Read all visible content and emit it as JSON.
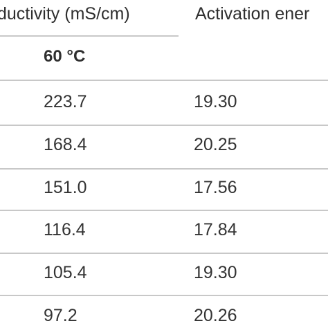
{
  "table": {
    "header_conductivity": "ductivity (mS/cm)",
    "header_activation": "Activation ener",
    "subheader_temperature": "60 °C",
    "rows": [
      {
        "conductivity_60c": "223.7",
        "activation_energy": "19.30"
      },
      {
        "conductivity_60c": "168.4",
        "activation_energy": "20.25"
      },
      {
        "conductivity_60c": "151.0",
        "activation_energy": "17.56"
      },
      {
        "conductivity_60c": "116.4",
        "activation_energy": "17.84"
      },
      {
        "conductivity_60c": "105.4",
        "activation_energy": "19.30"
      },
      {
        "conductivity_60c": "97.2",
        "activation_energy": "20.26"
      }
    ]
  }
}
